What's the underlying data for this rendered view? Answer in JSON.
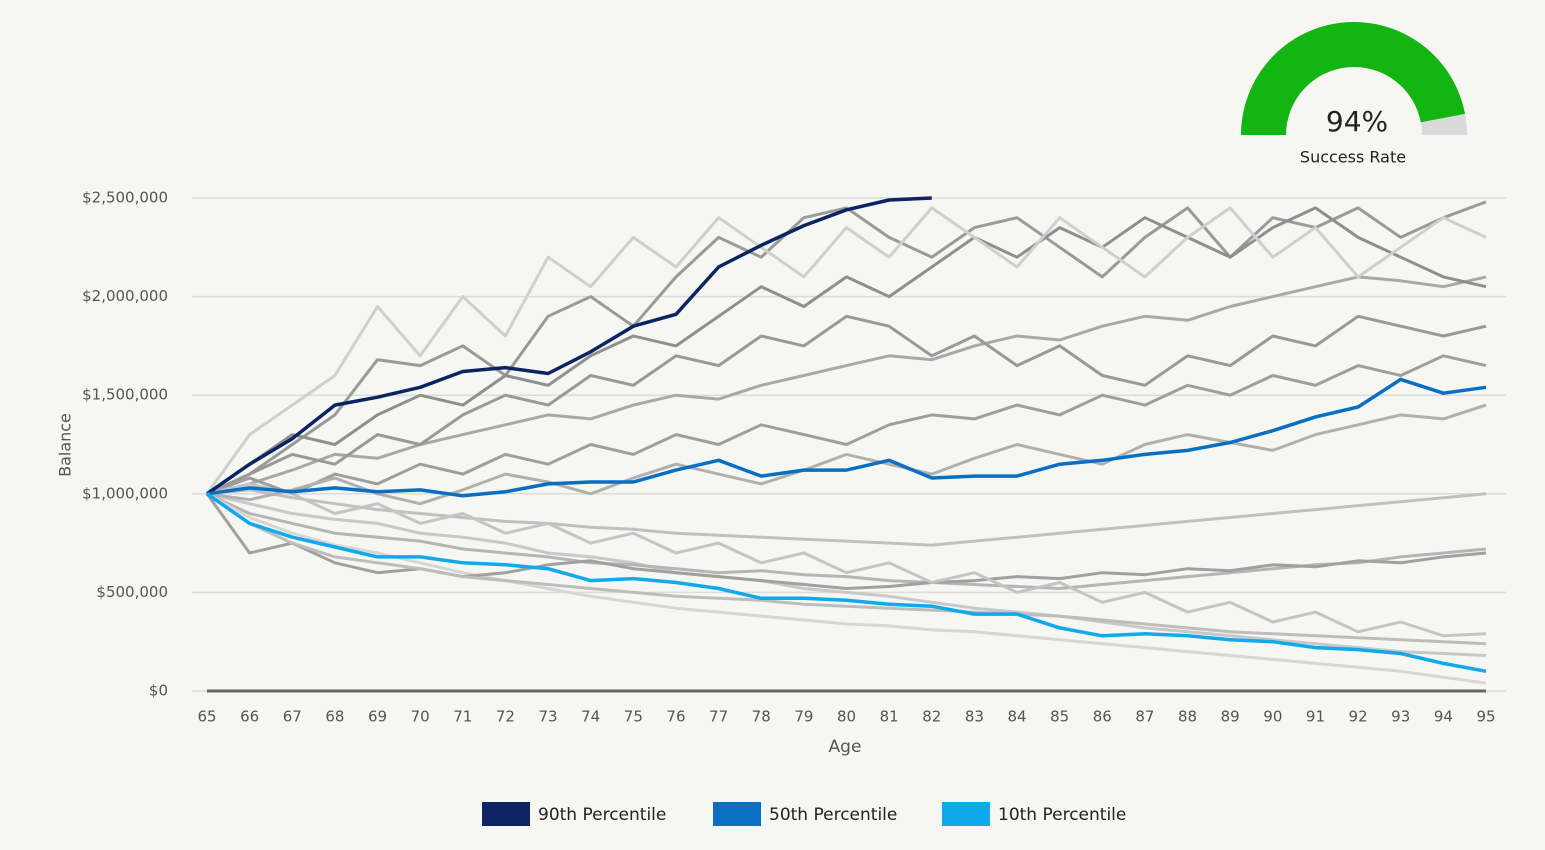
{
  "chart_data": {
    "type": "line",
    "x_label": "Age",
    "y_label": "Balance",
    "categories": [
      65,
      66,
      67,
      68,
      69,
      70,
      71,
      72,
      73,
      74,
      75,
      76,
      77,
      78,
      79,
      80,
      81,
      82,
      83,
      84,
      85,
      86,
      87,
      88,
      89,
      90,
      91,
      92,
      93,
      94,
      95
    ],
    "ylim": [
      0,
      2500000
    ],
    "yticks": [
      {
        "value": 0,
        "label": "$0"
      },
      {
        "value": 500000,
        "label": "$500,000"
      },
      {
        "value": 1000000,
        "label": "$1,000,000"
      },
      {
        "value": 1500000,
        "label": "$1,500,000"
      },
      {
        "value": 2000000,
        "label": "$2,000,000"
      },
      {
        "value": 2500000,
        "label": "$2,500,000"
      }
    ],
    "grid": true,
    "series": [
      {
        "name": "90th Percentile",
        "color": "#0c2461",
        "values": [
          1000000,
          1150000,
          1280000,
          1450000,
          1490000,
          1540000,
          1620000,
          1640000,
          1610000,
          1720000,
          1850000,
          1910000,
          2150000,
          2260000,
          2360000,
          2440000,
          2490000,
          2500000,
          null,
          null,
          null,
          null,
          null,
          null,
          null,
          null,
          null,
          null,
          null,
          null,
          null
        ]
      },
      {
        "name": "50th Percentile",
        "color": "#0a6fc2",
        "values": [
          1000000,
          1030000,
          1010000,
          1030000,
          1010000,
          1020000,
          990000,
          1010000,
          1050000,
          1060000,
          1060000,
          1120000,
          1170000,
          1090000,
          1120000,
          1120000,
          1170000,
          1080000,
          1090000,
          1090000,
          1150000,
          1170000,
          1200000,
          1220000,
          1260000,
          1320000,
          1390000,
          1440000,
          1580000,
          1510000,
          1540000
        ]
      },
      {
        "name": "10th Percentile",
        "color": "#0fa9ec",
        "values": [
          1000000,
          850000,
          780000,
          730000,
          680000,
          680000,
          650000,
          640000,
          620000,
          560000,
          570000,
          550000,
          520000,
          470000,
          470000,
          460000,
          440000,
          430000,
          390000,
          390000,
          320000,
          280000,
          290000,
          280000,
          260000,
          250000,
          220000,
          210000,
          190000,
          140000,
          100000
        ]
      }
    ],
    "simulations": [
      {
        "color": "#9a9a9a",
        "values": [
          1000000,
          1100000,
          1250000,
          1400000,
          1680000,
          1650000,
          1750000,
          1600000,
          1900000,
          2000000,
          1850000,
          2100000,
          2300000,
          2200000,
          2400000,
          2450000,
          2300000,
          2200000,
          2350000,
          2400000,
          2250000,
          2100000,
          2300000,
          2450000,
          2200000,
          2400000,
          2350000,
          2450000,
          2300000,
          2400000,
          2480000
        ]
      },
      {
        "color": "#c8c8c8",
        "values": [
          1000000,
          950000,
          900000,
          870000,
          850000,
          800000,
          780000,
          750000,
          700000,
          680000,
          650000,
          600000,
          580000,
          560000,
          520000,
          500000,
          480000,
          450000,
          420000,
          400000,
          380000,
          350000,
          320000,
          300000,
          280000,
          260000,
          240000,
          220000,
          200000,
          190000,
          180000
        ]
      },
      {
        "color": "#a8a8a8",
        "values": [
          1000000,
          1050000,
          1120000,
          1200000,
          1180000,
          1250000,
          1300000,
          1350000,
          1400000,
          1380000,
          1450000,
          1500000,
          1480000,
          1550000,
          1600000,
          1650000,
          1700000,
          1680000,
          1750000,
          1800000,
          1780000,
          1850000,
          1900000,
          1880000,
          1950000,
          2000000,
          2050000,
          2100000,
          2080000,
          2050000,
          2100000
        ]
      },
      {
        "color": "#b5b5b5",
        "values": [
          1000000,
          900000,
          850000,
          800000,
          780000,
          760000,
          720000,
          700000,
          680000,
          650000,
          640000,
          620000,
          600000,
          610000,
          590000,
          580000,
          560000,
          550000,
          540000,
          530000,
          520000,
          540000,
          560000,
          580000,
          600000,
          620000,
          640000,
          650000,
          680000,
          700000,
          720000
        ]
      },
      {
        "color": "#8f8f8f",
        "values": [
          1000000,
          1150000,
          1300000,
          1250000,
          1400000,
          1500000,
          1450000,
          1600000,
          1550000,
          1700000,
          1800000,
          1750000,
          1900000,
          2050000,
          1950000,
          2100000,
          2000000,
          2150000,
          2300000,
          2200000,
          2350000,
          2250000,
          2400000,
          2300000,
          2200000,
          2350000,
          2450000,
          2300000,
          2200000,
          2100000,
          2050000
        ]
      },
      {
        "color": "#d6d6d6",
        "values": [
          1000000,
          880000,
          800000,
          740000,
          700000,
          650000,
          600000,
          560000,
          520000,
          480000,
          450000,
          420000,
          400000,
          380000,
          360000,
          340000,
          330000,
          310000,
          300000,
          280000,
          260000,
          240000,
          220000,
          200000,
          180000,
          160000,
          140000,
          120000,
          100000,
          70000,
          40000
        ]
      },
      {
        "color": "#9e9e9e",
        "values": [
          1000000,
          1080000,
          1000000,
          1100000,
          1050000,
          1150000,
          1100000,
          1200000,
          1150000,
          1250000,
          1200000,
          1300000,
          1250000,
          1350000,
          1300000,
          1250000,
          1350000,
          1400000,
          1380000,
          1450000,
          1400000,
          1500000,
          1450000,
          1550000,
          1500000,
          1600000,
          1550000,
          1650000,
          1600000,
          1700000,
          1650000
        ]
      },
      {
        "color": "#c0c0c0",
        "values": [
          1000000,
          1020000,
          980000,
          950000,
          920000,
          900000,
          880000,
          860000,
          850000,
          830000,
          820000,
          800000,
          790000,
          780000,
          770000,
          760000,
          750000,
          740000,
          760000,
          780000,
          800000,
          820000,
          840000,
          860000,
          880000,
          900000,
          920000,
          940000,
          960000,
          980000,
          1000000
        ]
      },
      {
        "color": "#a0a0a0",
        "values": [
          1000000,
          700000,
          750000,
          650000,
          600000,
          620000,
          580000,
          600000,
          640000,
          660000,
          620000,
          600000,
          580000,
          560000,
          540000,
          520000,
          530000,
          550000,
          560000,
          580000,
          570000,
          600000,
          590000,
          620000,
          610000,
          640000,
          630000,
          660000,
          650000,
          680000,
          700000
        ]
      },
      {
        "color": "#cfcfcf",
        "values": [
          1000000,
          1300000,
          1450000,
          1600000,
          1950000,
          1700000,
          2000000,
          1800000,
          2200000,
          2050000,
          2300000,
          2150000,
          2400000,
          2250000,
          2100000,
          2350000,
          2200000,
          2450000,
          2300000,
          2150000,
          2400000,
          2250000,
          2100000,
          2300000,
          2450000,
          2200000,
          2350000,
          2100000,
          2250000,
          2400000,
          2300000
        ]
      },
      {
        "color": "#b0b0b0",
        "values": [
          1000000,
          970000,
          1020000,
          1080000,
          1000000,
          950000,
          1020000,
          1100000,
          1060000,
          1000000,
          1080000,
          1150000,
          1100000,
          1050000,
          1120000,
          1200000,
          1150000,
          1100000,
          1180000,
          1250000,
          1200000,
          1150000,
          1250000,
          1300000,
          1260000,
          1220000,
          1300000,
          1350000,
          1400000,
          1380000,
          1450000
        ]
      },
      {
        "color": "#bdbdbd",
        "values": [
          1000000,
          850000,
          750000,
          680000,
          650000,
          620000,
          580000,
          560000,
          540000,
          520000,
          500000,
          480000,
          470000,
          460000,
          440000,
          430000,
          420000,
          410000,
          400000,
          390000,
          380000,
          360000,
          340000,
          320000,
          300000,
          290000,
          280000,
          270000,
          260000,
          250000,
          240000
        ]
      },
      {
        "color": "#999999",
        "values": [
          1000000,
          1100000,
          1200000,
          1150000,
          1300000,
          1250000,
          1400000,
          1500000,
          1450000,
          1600000,
          1550000,
          1700000,
          1650000,
          1800000,
          1750000,
          1900000,
          1850000,
          1700000,
          1800000,
          1650000,
          1750000,
          1600000,
          1550000,
          1700000,
          1650000,
          1800000,
          1750000,
          1900000,
          1850000,
          1800000,
          1850000
        ]
      },
      {
        "color": "#c4c4c4",
        "values": [
          1000000,
          1050000,
          1000000,
          900000,
          950000,
          850000,
          900000,
          800000,
          850000,
          750000,
          800000,
          700000,
          750000,
          650000,
          700000,
          600000,
          650000,
          550000,
          600000,
          500000,
          550000,
          450000,
          500000,
          400000,
          450000,
          350000,
          400000,
          300000,
          350000,
          280000,
          290000
        ]
      }
    ]
  },
  "gauge": {
    "value": 94,
    "label": "94%",
    "caption": "Success Rate",
    "color": "#12b512",
    "track_color": "#d9d9d9"
  }
}
